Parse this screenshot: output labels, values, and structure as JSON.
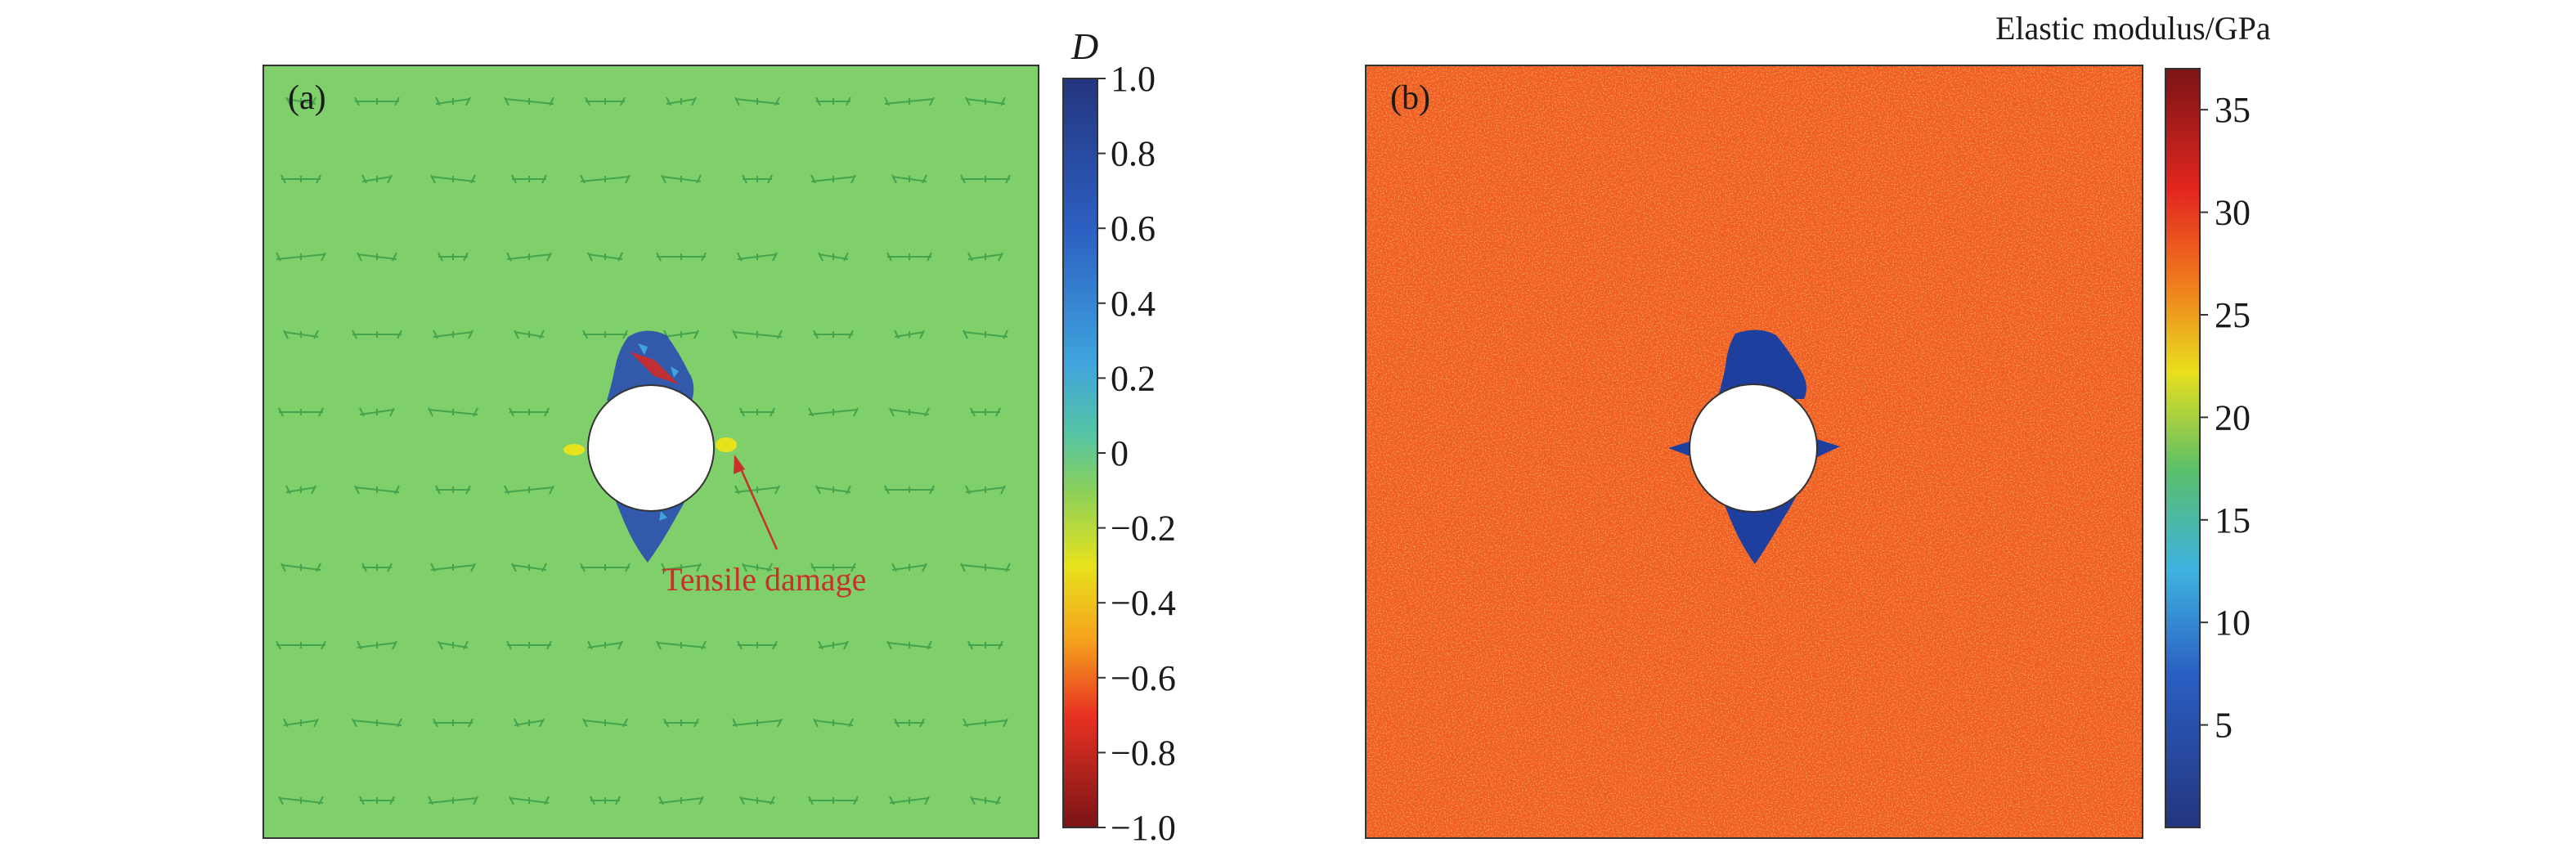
{
  "panel_a": {
    "label": "(a)",
    "annotation": "Tensile damage",
    "colorbar": {
      "title": "D",
      "ticks": [
        "1.0",
        "0.8",
        "0.6",
        "0.4",
        "0.2",
        "0",
        "−0.2",
        "−0.4",
        "−0.6",
        "−0.8",
        "−1.0"
      ],
      "tick_values": [
        1.0,
        0.8,
        0.6,
        0.4,
        0.2,
        0,
        -0.2,
        -0.4,
        -0.6,
        -0.8,
        -1.0
      ],
      "range": [
        -1.0,
        1.0
      ]
    },
    "background_color": "#7fcf6a",
    "annotation_color": "#c8302a"
  },
  "panel_b": {
    "label": "(b)",
    "colorbar": {
      "title": "Elastic modulus/GPa",
      "ticks": [
        "35",
        "30",
        "25",
        "20",
        "15",
        "10",
        "5"
      ],
      "tick_values": [
        35,
        30,
        25,
        20,
        15,
        10,
        5
      ],
      "range": [
        0,
        37
      ]
    },
    "background_color": "#ef5a24",
    "damaged_color": "#1e3f9e"
  }
}
